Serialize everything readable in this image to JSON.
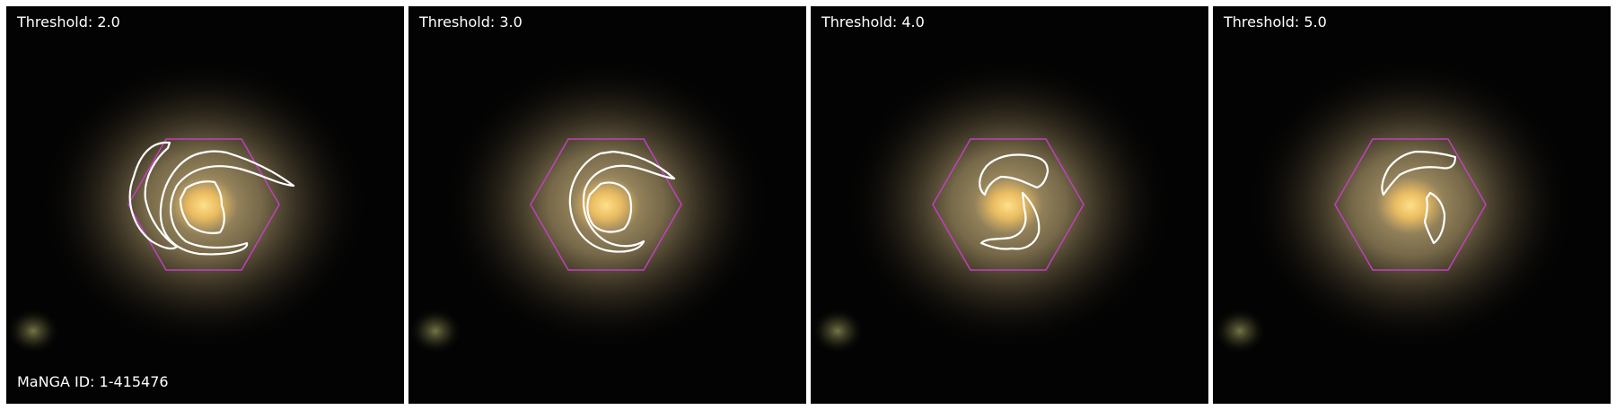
{
  "figure": {
    "manga_id_label": "MaNGA ID: 1-415476",
    "panels": [
      {
        "label": "Threshold: 2.0"
      },
      {
        "label": "Threshold: 3.0"
      },
      {
        "label": "Threshold: 4.0"
      },
      {
        "label": "Threshold: 5.0"
      }
    ]
  },
  "colors": {
    "background": "#020202",
    "galaxy_core": "#ffd070",
    "galaxy_halo": "#a89565",
    "hexagon": "#c040c0",
    "contour": "#ffffff",
    "panel_gap": "#ffffff"
  }
}
